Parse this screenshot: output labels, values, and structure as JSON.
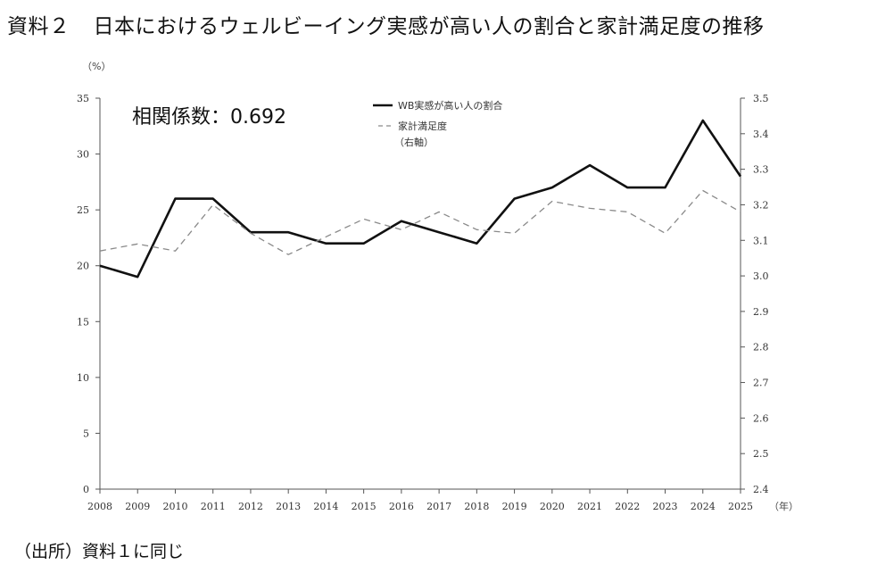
{
  "header": {
    "doc_label": "資料２",
    "title": "日本におけるウェルビーイング実感が高い人の割合と家計満足度の推移"
  },
  "footer": {
    "source": "（出所）資料１に同じ"
  },
  "chart_data": {
    "type": "line",
    "left_unit": "（%）",
    "x_unit": "（年）",
    "annotation": "相関係数：0.692",
    "x": [
      "2008",
      "2009",
      "2010",
      "2011",
      "2012",
      "2013",
      "2014",
      "2015",
      "2016",
      "2017",
      "2018",
      "2019",
      "2020",
      "2021",
      "2022",
      "2023",
      "2024",
      "2025"
    ],
    "left_axis": {
      "min": 0,
      "max": 35,
      "ticks": [
        "0",
        "5",
        "10",
        "15",
        "20",
        "25",
        "30",
        "35"
      ]
    },
    "right_axis": {
      "min": 2.4,
      "max": 3.5,
      "ticks": [
        "2.4",
        "2.5",
        "2.6",
        "2.7",
        "2.8",
        "2.9",
        "3.0",
        "3.1",
        "3.2",
        "3.3",
        "3.4",
        "3.5"
      ]
    },
    "series": [
      {
        "name": "WB実感が高い人の割合",
        "axis": "left",
        "style": "solid",
        "color": "#111111",
        "values": [
          20,
          19,
          26,
          26,
          23,
          23,
          22,
          22,
          24,
          23,
          22,
          26,
          27,
          29,
          27,
          27,
          33,
          28
        ]
      },
      {
        "name": "家計満足度",
        "name_line2": "（右軸）",
        "axis": "right",
        "style": "dashed",
        "color": "#8a8a8a",
        "values": [
          3.07,
          3.09,
          3.07,
          3.2,
          3.12,
          3.06,
          3.11,
          3.16,
          3.13,
          3.18,
          3.13,
          3.12,
          3.21,
          3.19,
          3.18,
          3.12,
          3.24,
          3.18
        ]
      }
    ],
    "grid": false,
    "legend_position": "top-center"
  }
}
